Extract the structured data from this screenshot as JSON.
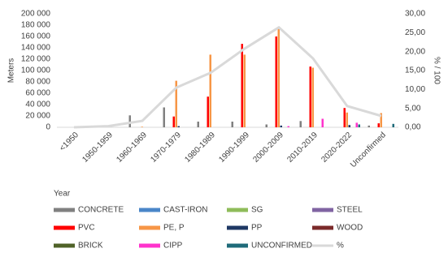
{
  "chart_data": {
    "type": "bar",
    "x_label": "Year",
    "y_label": "Meters",
    "y2_label": "% / 100",
    "categories": [
      "<1950",
      "1950-1959",
      "1960-1969",
      "1970-1979",
      "1980-1989",
      "1990-1999",
      "2000-2009",
      "2010-2019",
      "2020-2022",
      "Unconfirmed"
    ],
    "series": [
      {
        "name": "CONCRETE",
        "color": "#808080",
        "values": [
          0,
          0,
          21000,
          35000,
          10000,
          10000,
          5000,
          11000,
          0,
          3000
        ]
      },
      {
        "name": "CAST-IRON",
        "color": "#4a86c8",
        "values": [
          0,
          0,
          0,
          0,
          0,
          0,
          0,
          0,
          0,
          0
        ]
      },
      {
        "name": "SG",
        "color": "#8fbc5a",
        "values": [
          0,
          0,
          0,
          0,
          0,
          0,
          0,
          0,
          0,
          0
        ]
      },
      {
        "name": "STEEL",
        "color": "#8064a2",
        "values": [
          0,
          0,
          0,
          0,
          0,
          0,
          0,
          0,
          0,
          0
        ]
      },
      {
        "name": "PVC",
        "color": "#ff0000",
        "values": [
          0,
          0,
          0,
          19000,
          54000,
          147000,
          160000,
          107000,
          34000,
          7000
        ]
      },
      {
        "name": "PE, P",
        "color": "#f79646",
        "values": [
          0,
          0,
          1000,
          82000,
          128000,
          128000,
          175000,
          105000,
          26000,
          25000
        ]
      },
      {
        "name": "PP",
        "color": "#1f3864",
        "values": [
          0,
          0,
          0,
          2000,
          0,
          0,
          3000,
          0,
          4000,
          0
        ]
      },
      {
        "name": "WOOD",
        "color": "#7b2a2a",
        "values": [
          0,
          0,
          0,
          0,
          0,
          0,
          0,
          0,
          0,
          0
        ]
      },
      {
        "name": "BRICK",
        "color": "#4f6228",
        "values": [
          0,
          0,
          0,
          0,
          0,
          0,
          0,
          0,
          0,
          0
        ]
      },
      {
        "name": "CIPP",
        "color": "#ff33cc",
        "values": [
          0,
          0,
          0,
          0,
          0,
          0,
          2000,
          15000,
          8000,
          0
        ]
      },
      {
        "name": "UNCONFIRMED",
        "color": "#1f6b7a",
        "values": [
          0,
          0,
          0,
          0,
          0,
          0,
          0,
          0,
          5000,
          6000
        ]
      },
      {
        "name": "%",
        "color": "#d9d9d9",
        "kind": "line",
        "axis": "y2",
        "values": [
          0,
          0.3,
          1.7,
          10.5,
          14.4,
          20.8,
          26.4,
          18.2,
          5.6,
          3.0
        ]
      }
    ],
    "ylim": [
      0,
      200000
    ],
    "yticks": [
      0,
      {
        "value": 20000,
        "label": "20 000"
      },
      {
        "value": 40000,
        "label": "40 000"
      },
      {
        "value": 60000,
        "label": "60 000"
      },
      {
        "value": 80000,
        "label": "80 000"
      },
      {
        "value": 100000,
        "label": "100 000"
      },
      {
        "value": 120000,
        "label": "120 000"
      },
      {
        "value": 140000,
        "label": "140 000"
      },
      {
        "value": 160000,
        "label": "160 000"
      },
      {
        "value": 180000,
        "label": "180 000"
      },
      {
        "value": 200000,
        "label": "200 000"
      }
    ],
    "y2lim": [
      0,
      30
    ],
    "y2ticks": [
      {
        "value": 0,
        "label": "0,00"
      },
      {
        "value": 5,
        "label": "5,00"
      },
      {
        "value": 10,
        "label": "10,00"
      },
      {
        "value": 15,
        "label": "15,00"
      },
      {
        "value": 20,
        "label": "20,00"
      },
      {
        "value": 25,
        "label": "25,00"
      },
      {
        "value": 30,
        "label": "30,00"
      }
    ],
    "grid": false
  }
}
